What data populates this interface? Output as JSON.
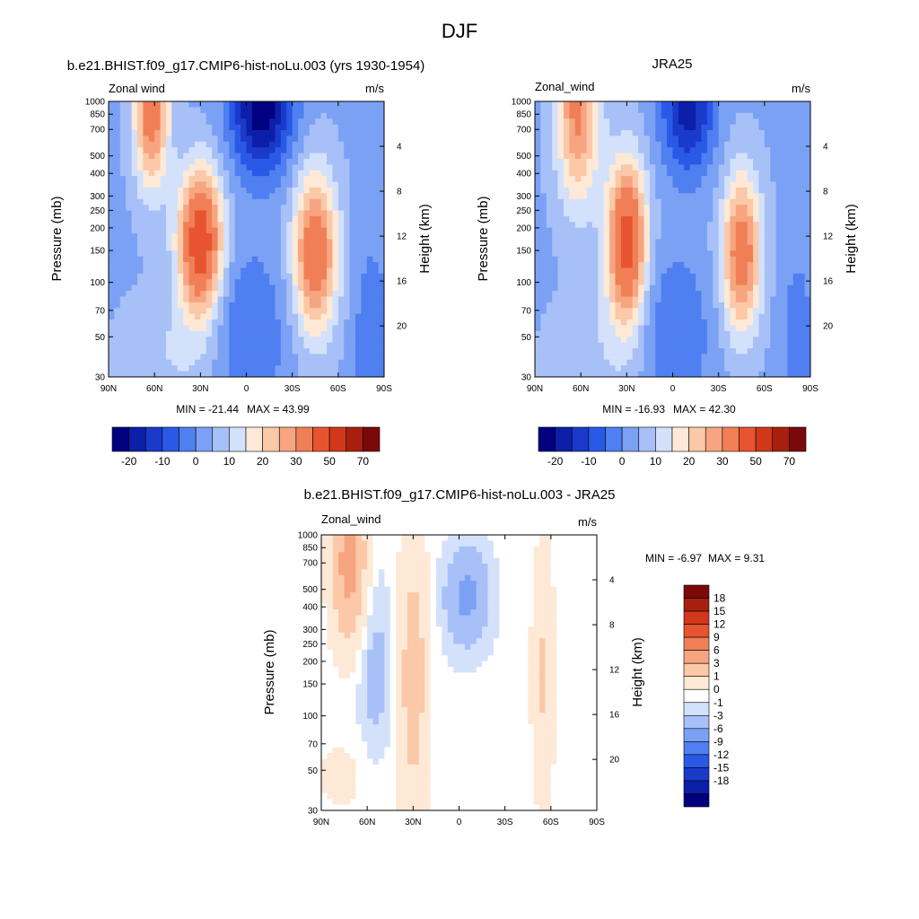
{
  "figure": {
    "title": "DJF"
  },
  "colors": {
    "main": [
      "#000080",
      "#0c1fa8",
      "#1a3ac9",
      "#2a59e6",
      "#4f7ff0",
      "#7ba1f5",
      "#a7c0f7",
      "#d4e1fb",
      "#fde9d6",
      "#fbc8a8",
      "#f7a581",
      "#f07f56",
      "#e8542f",
      "#d1371a",
      "#a8200d",
      "#7c0909"
    ],
    "diff": [
      "#000080",
      "#0c1fa8",
      "#1a3ac9",
      "#2a59e6",
      "#4f7ff0",
      "#7ba1f5",
      "#a7c0f7",
      "#d4e1fb",
      "#ffffff",
      "#fde9d6",
      "#fbc8a8",
      "#f7a581",
      "#f07f56",
      "#e8542f",
      "#d1371a",
      "#a8200d",
      "#7c0909"
    ]
  },
  "chart_data": [
    {
      "type": "heatmap",
      "title": "b.e21.BHIST.f09_g17.CMIP6-hist-noLu.003 (yrs 1930-1954)",
      "left_label": "Zonal wind",
      "right_label": "m/s",
      "ylabel": "Pressure (mb)",
      "y2label": "Height (km)",
      "x_ticks": [
        "90N",
        "60N",
        "30N",
        "0",
        "30S",
        "60S",
        "90S"
      ],
      "y_ticks": [
        "30",
        "50",
        "70",
        "100",
        "150",
        "200",
        "250",
        "300",
        "400",
        "500",
        "700",
        "850",
        "1000"
      ],
      "y2_ticks": [
        "20",
        "16",
        "12",
        "8",
        "4"
      ],
      "min_label": "MIN = -21.44",
      "max_label": "MAX =  43.99",
      "min": -21.44,
      "max": 43.99,
      "colorbar_labels": [
        "-20",
        "-10",
        "0",
        "10",
        "20",
        "30",
        "50",
        "70"
      ]
    },
    {
      "type": "heatmap",
      "title": "JRA25",
      "left_label": "Zonal_wind",
      "right_label": "m/s",
      "ylabel": "Pressure (mb)",
      "y2label": "Height (km)",
      "x_ticks": [
        "90N",
        "60N",
        "30N",
        "0",
        "30S",
        "60S",
        "90S"
      ],
      "y_ticks": [
        "30",
        "50",
        "70",
        "100",
        "150",
        "200",
        "250",
        "300",
        "400",
        "500",
        "700",
        "850",
        "1000"
      ],
      "y2_ticks": [
        "20",
        "16",
        "12",
        "8",
        "4"
      ],
      "min_label": "MIN = -16.93",
      "max_label": "MAX =  42.30",
      "min": -16.93,
      "max": 42.3,
      "colorbar_labels": [
        "-20",
        "-10",
        "0",
        "10",
        "20",
        "30",
        "50",
        "70"
      ]
    },
    {
      "type": "heatmap",
      "title": "b.e21.BHIST.f09_g17.CMIP6-hist-noLu.003 - JRA25",
      "left_label": "Zonal_wind",
      "right_label": "m/s",
      "ylabel": "Pressure (mb)",
      "y2label": "Height (km)",
      "x_ticks": [
        "90N",
        "60N",
        "30N",
        "0",
        "30S",
        "60S",
        "90S"
      ],
      "y_ticks": [
        "30",
        "50",
        "70",
        "100",
        "150",
        "200",
        "250",
        "300",
        "400",
        "500",
        "700",
        "850",
        "1000"
      ],
      "y2_ticks": [
        "20",
        "16",
        "12",
        "8",
        "4"
      ],
      "min_label": "MIN =  -6.97",
      "max_label": "MAX =   9.31",
      "min": -6.97,
      "max": 9.31,
      "colorbar_labels": [
        "18",
        "15",
        "12",
        "9",
        "6",
        "3",
        "1",
        "0",
        "-1",
        "-3",
        "-6",
        "-9",
        "-12",
        "-15",
        "-18"
      ]
    }
  ]
}
